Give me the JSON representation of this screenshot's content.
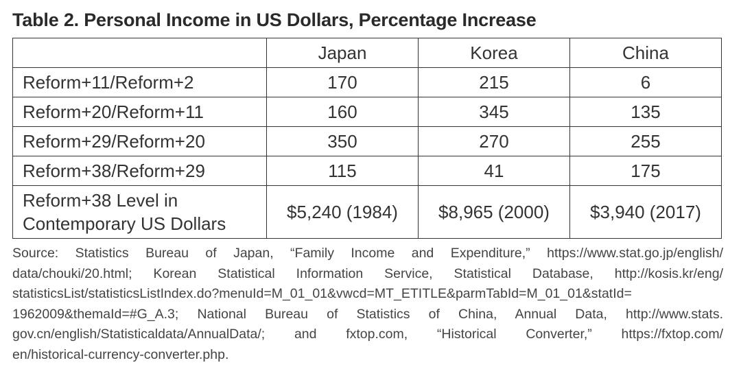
{
  "title": "Table 2. Personal Income in US Dollars, Percentage Increase",
  "table": {
    "header": [
      "Japan",
      "Korea",
      "China"
    ],
    "rows": [
      [
        "Reform+11/Reform+2",
        170,
        215,
        6
      ],
      [
        "Reform+20/Reform+11",
        160,
        345,
        135
      ],
      [
        "Reform+29/Reform+20",
        350,
        270,
        255
      ],
      [
        "Reform+38/Reform+29",
        115,
        41,
        175
      ],
      [
        "Reform+38 Level in\nContemporary US Dollars",
        "$5,240 (1984)",
        "$8,965 (2000)",
        "$3,940 (2017)"
      ]
    ]
  },
  "source": [
    "Source: Statistics Bureau of Japan, “Family Income and Expenditure,” https://www.stat.go.jp/english/",
    "data/chouki/20.html; Korean Statistical Information Service, Statistical Database, http://kosis.kr/eng/",
    "statisticsList/statisticsListIndex.do?menuId=M_01_01&vwcd=MT_ETITLE&parmTabId=M_01_01&statId=",
    "1962009&themaId=#G_A.3; National Bureau of Statistics of China, Annual Data, http://www.stats.",
    "gov.cn/english/Statisticaldata/AnnualData/; and fxtop.com, “Historical Converter,” https://fxtop.com/",
    "en/historical-currency-converter.php."
  ]
}
